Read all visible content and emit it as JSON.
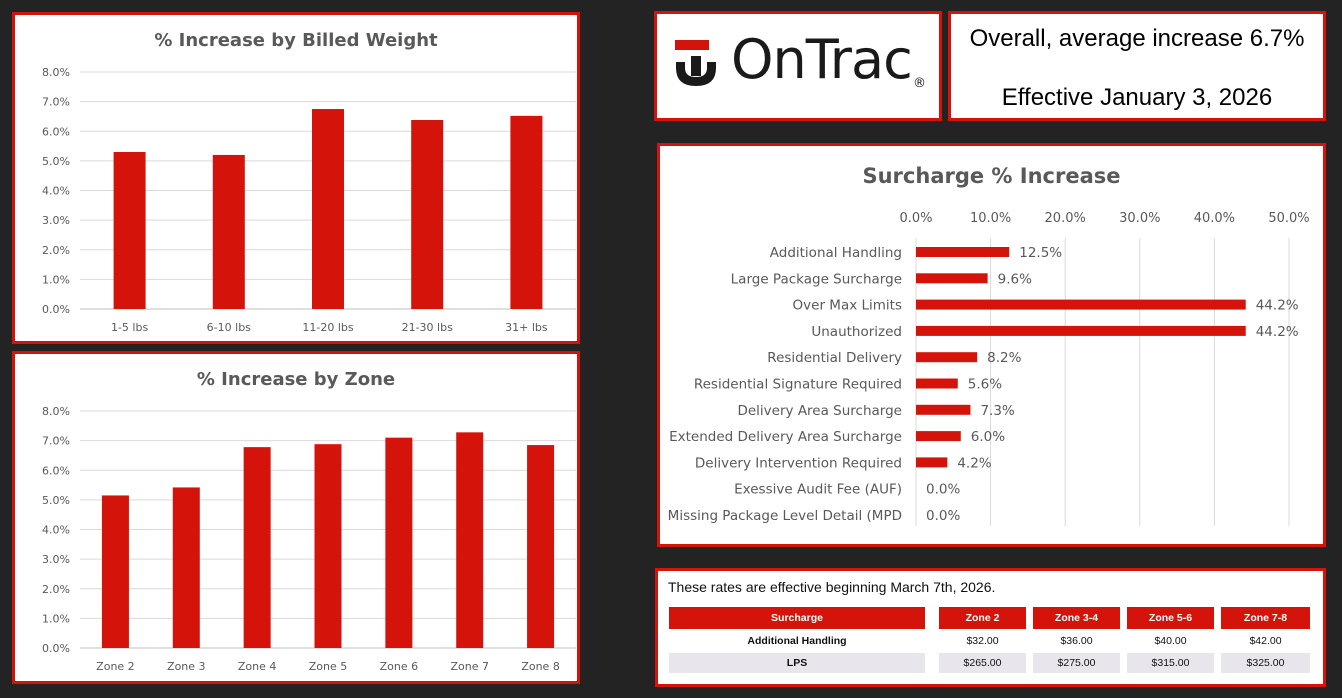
{
  "brand": {
    "name": "OnTrac",
    "registered": "®"
  },
  "headline": {
    "line1": "Overall, average increase 6.7%",
    "line2": "Effective January 3, 2026"
  },
  "colors": {
    "accent": "#d4140a",
    "background": "#232323",
    "text": "#595959"
  },
  "chart_data": [
    {
      "type": "bar",
      "title": "% Increase by Billed Weight",
      "categories": [
        "1-5 lbs",
        "6-10 lbs",
        "11-20 lbs",
        "21-30 lbs",
        "31+ lbs"
      ],
      "values": [
        5.3,
        5.2,
        6.75,
        6.38,
        6.52
      ],
      "yticks": [
        "0.0%",
        "1.0%",
        "2.0%",
        "3.0%",
        "4.0%",
        "5.0%",
        "6.0%",
        "7.0%",
        "8.0%"
      ],
      "ylim": [
        0,
        8
      ],
      "grid": true
    },
    {
      "type": "bar",
      "title": "% Increase by Zone",
      "categories": [
        "Zone 2",
        "Zone 3",
        "Zone 4",
        "Zone 5",
        "Zone 6",
        "Zone 7",
        "Zone 8"
      ],
      "values": [
        5.15,
        5.42,
        6.78,
        6.88,
        7.1,
        7.28,
        6.85
      ],
      "yticks": [
        "0.0%",
        "1.0%",
        "2.0%",
        "3.0%",
        "4.0%",
        "5.0%",
        "6.0%",
        "7.0%",
        "8.0%"
      ],
      "ylim": [
        0,
        8
      ],
      "grid": true
    },
    {
      "type": "bar",
      "orientation": "horizontal",
      "title": "Surcharge % Increase",
      "categories": [
        "Additional Handling",
        "Large Package Surcharge",
        "Over Max Limits",
        "Unauthorized",
        "Residential Delivery",
        "Residential Signature Required",
        "Delivery Area Surcharge",
        "Extended Delivery Area Surcharge",
        "Delivery Intervention Required",
        "Exessive Audit Fee (AUF)",
        "Missing Package Level Detail (MPD"
      ],
      "values": [
        12.5,
        9.6,
        44.2,
        44.2,
        8.2,
        5.6,
        7.3,
        6.0,
        4.2,
        0.0,
        0.0
      ],
      "data_labels": [
        "12.5%",
        "9.6%",
        "44.2%",
        "44.2%",
        "8.2%",
        "5.6%",
        "7.3%",
        "6.0%",
        "4.2%",
        "0.0%",
        "0.0%"
      ],
      "xticks": [
        "0.0%",
        "10.0%",
        "20.0%",
        "30.0%",
        "40.0%",
        "50.0%"
      ],
      "xlim": [
        0,
        50
      ],
      "xaxis_position": "top",
      "grid": true
    }
  ],
  "rates_table": {
    "note": "These rates are effective beginning March 7th, 2026.",
    "headers": [
      "Surcharge",
      "Zone 2",
      "Zone 3-4",
      "Zone 5-6",
      "Zone 7-8"
    ],
    "rows": [
      [
        "Additional Handling",
        "$32.00",
        "$36.00",
        "$40.00",
        "$42.00"
      ],
      [
        "LPS",
        "$265.00",
        "$275.00",
        "$315.00",
        "$325.00"
      ]
    ]
  }
}
